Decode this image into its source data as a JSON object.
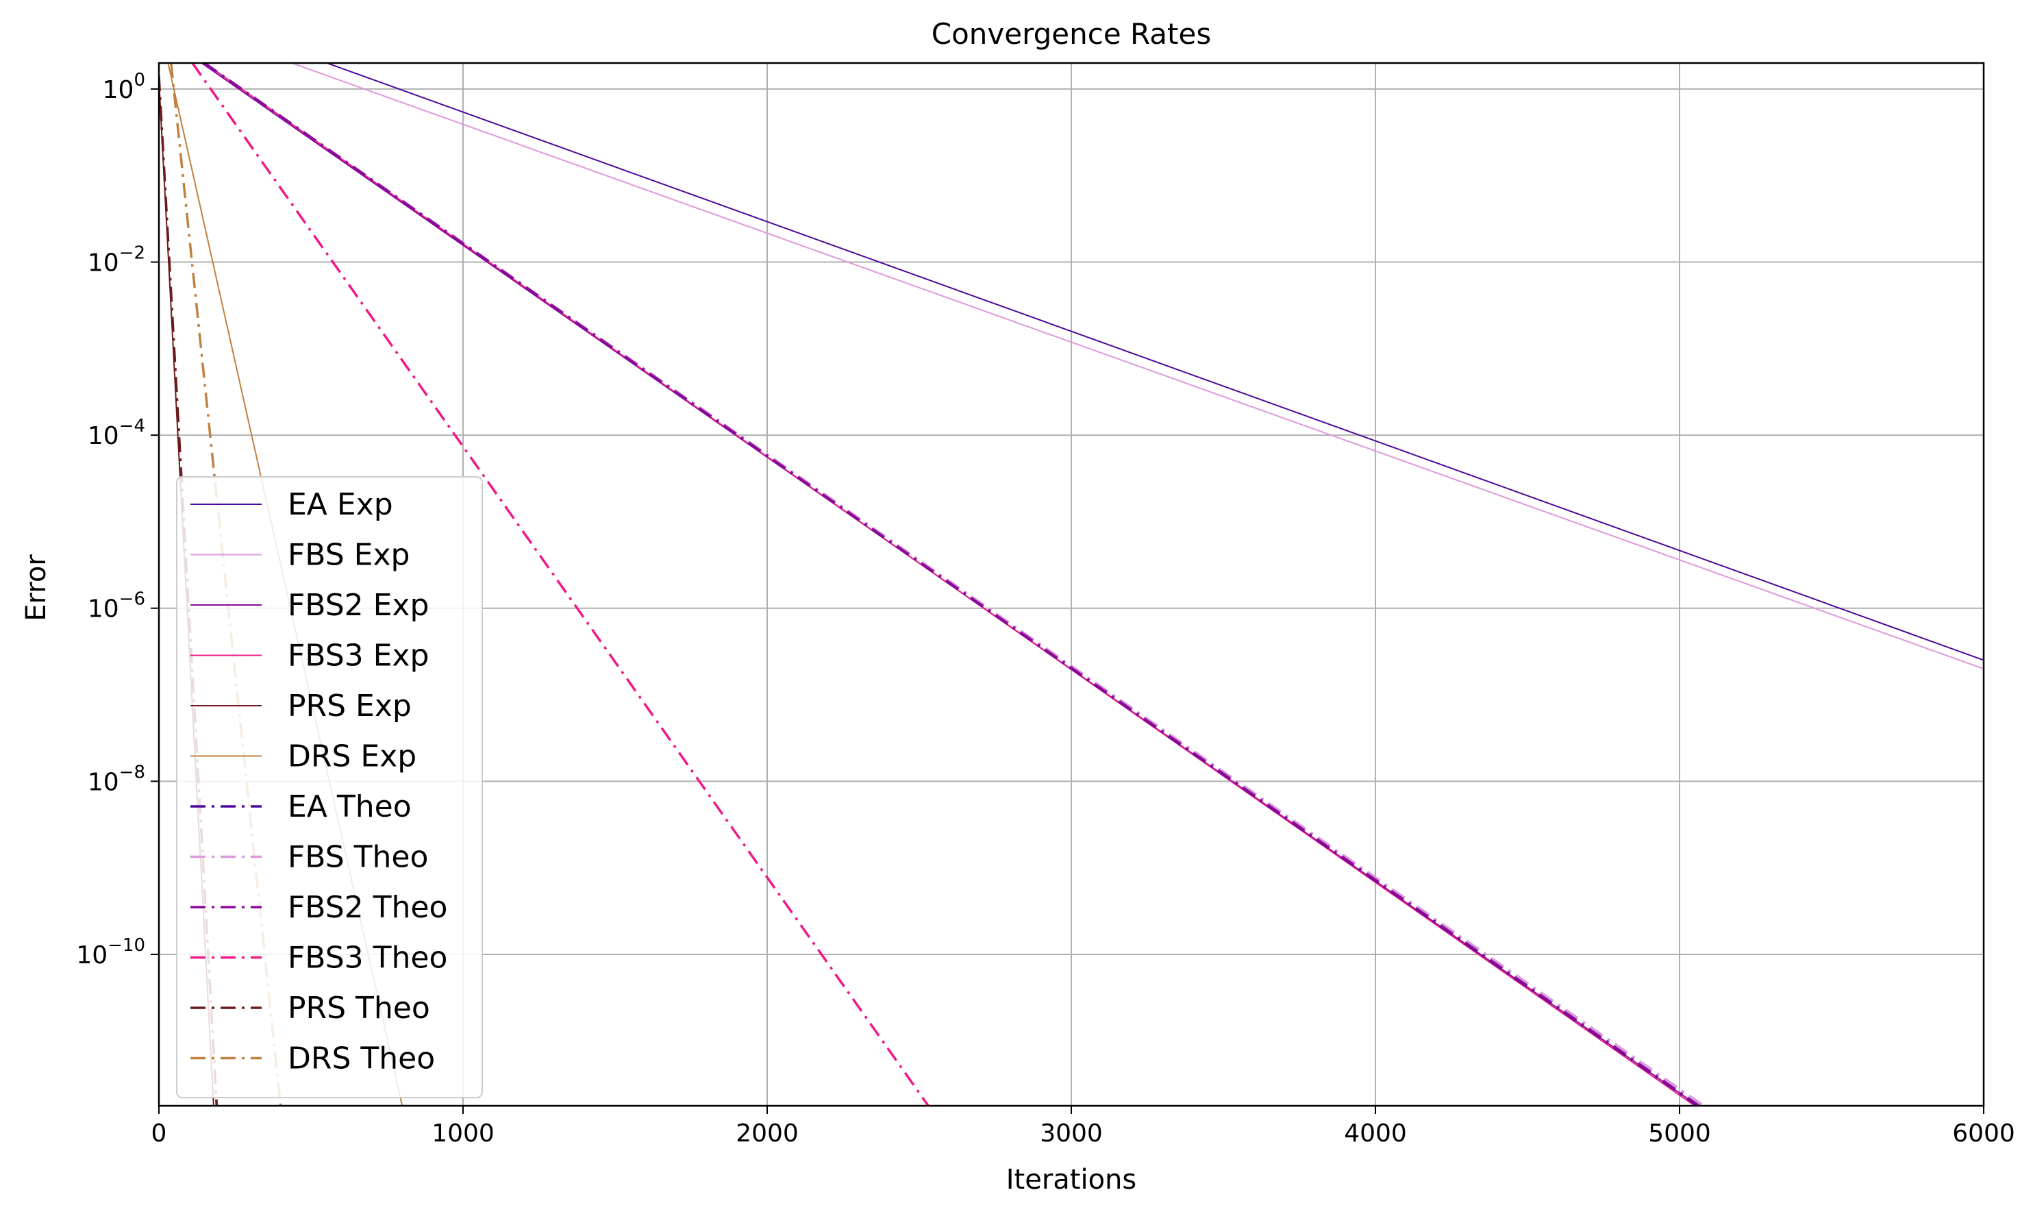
{
  "chart_data": {
    "type": "line",
    "title": "Convergence Rates",
    "xlabel": "Iterations",
    "ylabel": "Error",
    "xlim": [
      0,
      6000
    ],
    "ylim_log10": [
      -11.75,
      0.3
    ],
    "yscale": "log",
    "grid": true,
    "legend_position": "lower-left",
    "x_ticks": [
      {
        "value": 0,
        "label": "0"
      },
      {
        "value": 1000,
        "label": "1000"
      },
      {
        "value": 2000,
        "label": "2000"
      },
      {
        "value": 3000,
        "label": "3000"
      },
      {
        "value": 4000,
        "label": "4000"
      },
      {
        "value": 5000,
        "label": "5000"
      },
      {
        "value": 6000,
        "label": "6000"
      }
    ],
    "y_ticks": [
      {
        "exp": 0,
        "base": "10",
        "sup": "0"
      },
      {
        "exp": -2,
        "base": "10",
        "sup": "−2"
      },
      {
        "exp": -4,
        "base": "10",
        "sup": "−4"
      },
      {
        "exp": -6,
        "base": "10",
        "sup": "−6"
      },
      {
        "exp": -8,
        "base": "10",
        "sup": "−8"
      },
      {
        "exp": -10,
        "base": "10",
        "sup": "−10"
      }
    ],
    "series": [
      {
        "name": "EA Exp",
        "color": "#4b0a9a",
        "style": "solid",
        "width": 2,
        "points": [
          [
            0,
            1.0
          ],
          [
            6000,
            -6.6
          ]
        ]
      },
      {
        "name": "FBS Exp",
        "color": "#dd99dd",
        "style": "solid",
        "width": 2,
        "points": [
          [
            0,
            0.85
          ],
          [
            6000,
            -6.7
          ]
        ]
      },
      {
        "name": "FBS2 Exp",
        "color": "#8b0a9a",
        "style": "solid",
        "width": 2,
        "points": [
          [
            120,
            0.35
          ],
          [
            5060,
            -11.75
          ]
        ]
      },
      {
        "name": "FBS3 Exp",
        "color": "#f01887",
        "style": "solid",
        "width": 2,
        "points": [
          [
            150,
            0.3
          ],
          [
            5050,
            -11.75
          ]
        ]
      },
      {
        "name": "PRS Exp",
        "color": "#6b1a1a",
        "style": "solid",
        "width": 2,
        "points": [
          [
            0,
            0.1
          ],
          [
            180,
            -11.75
          ]
        ]
      },
      {
        "name": "DRS Exp",
        "color": "#c08040",
        "style": "solid",
        "width": 2,
        "points": [
          [
            30,
            0.3
          ],
          [
            800,
            -11.75
          ]
        ]
      },
      {
        "name": "EA Theo",
        "color": "#4b0a9a",
        "style": "dashdot",
        "width": 3.5,
        "points": [
          [
            150,
            0.3
          ],
          [
            5060,
            -11.75
          ]
        ]
      },
      {
        "name": "FBS Theo",
        "color": "#dd99dd",
        "style": "dashdot",
        "width": 3.5,
        "points": [
          [
            150,
            0.3
          ],
          [
            5080,
            -11.75
          ]
        ]
      },
      {
        "name": "FBS2 Theo",
        "color": "#8b0a9a",
        "style": "dashdot",
        "width": 3.5,
        "points": [
          [
            150,
            0.3
          ],
          [
            5065,
            -11.75
          ]
        ]
      },
      {
        "name": "FBS3 Theo",
        "color": "#f01887",
        "style": "dashdot",
        "width": 3.5,
        "points": [
          [
            110,
            0.3
          ],
          [
            2530,
            -11.75
          ]
        ]
      },
      {
        "name": "PRS Theo",
        "color": "#6b1a1a",
        "style": "dashdot",
        "width": 3.5,
        "points": [
          [
            0,
            0.15
          ],
          [
            190,
            -11.75
          ]
        ]
      },
      {
        "name": "DRS Theo",
        "color": "#c08040",
        "style": "dashdot",
        "width": 3.5,
        "points": [
          [
            40,
            0.3
          ],
          [
            400,
            -11.75
          ]
        ]
      }
    ]
  }
}
